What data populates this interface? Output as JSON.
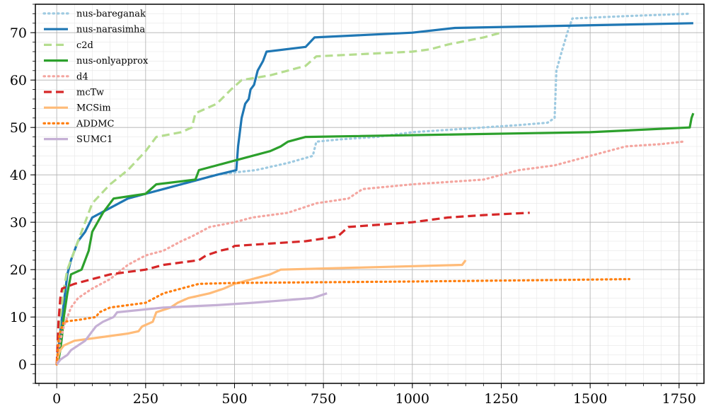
{
  "chart_data": {
    "type": "line",
    "xlim": [
      -60,
      1820
    ],
    "ylim": [
      -4,
      76
    ],
    "x_ticks": [
      0,
      250,
      500,
      750,
      1000,
      1250,
      1500,
      1750
    ],
    "y_ticks": [
      0,
      10,
      20,
      30,
      40,
      50,
      60,
      70
    ],
    "grid": true,
    "legend_position": "top-left",
    "series": [
      {
        "name": "nus-bareganak",
        "color": "#9ecae1",
        "style": "dotted",
        "points": [
          [
            0,
            0
          ],
          [
            5,
            3
          ],
          [
            10,
            7
          ],
          [
            15,
            10
          ],
          [
            20,
            13
          ],
          [
            25,
            16
          ],
          [
            30,
            19
          ],
          [
            40,
            22
          ],
          [
            50,
            24
          ],
          [
            60,
            26
          ],
          [
            80,
            28
          ],
          [
            100,
            31
          ],
          [
            150,
            33
          ],
          [
            200,
            35
          ],
          [
            250,
            36
          ],
          [
            300,
            37
          ],
          [
            350,
            38
          ],
          [
            400,
            39
          ],
          [
            450,
            40
          ],
          [
            500,
            40.5
          ],
          [
            560,
            41
          ],
          [
            650,
            42.5
          ],
          [
            720,
            44
          ],
          [
            730,
            47
          ],
          [
            800,
            47.5
          ],
          [
            900,
            48
          ],
          [
            1000,
            49
          ],
          [
            1100,
            49.5
          ],
          [
            1200,
            50
          ],
          [
            1300,
            50.5
          ],
          [
            1380,
            51
          ],
          [
            1400,
            52
          ],
          [
            1405,
            62
          ],
          [
            1420,
            66
          ],
          [
            1440,
            71
          ],
          [
            1450,
            73
          ],
          [
            1600,
            73.5
          ],
          [
            1780,
            74
          ]
        ]
      },
      {
        "name": "nus-narasimha",
        "color": "#1f77b4",
        "style": "solid",
        "points": [
          [
            0,
            0
          ],
          [
            5,
            3
          ],
          [
            10,
            7
          ],
          [
            15,
            10
          ],
          [
            20,
            13
          ],
          [
            25,
            16
          ],
          [
            30,
            19
          ],
          [
            40,
            22
          ],
          [
            50,
            24
          ],
          [
            60,
            26
          ],
          [
            80,
            28
          ],
          [
            100,
            31
          ],
          [
            150,
            33
          ],
          [
            200,
            35
          ],
          [
            250,
            36
          ],
          [
            300,
            37
          ],
          [
            350,
            38
          ],
          [
            400,
            39
          ],
          [
            450,
            40
          ],
          [
            505,
            41
          ],
          [
            510,
            46
          ],
          [
            520,
            52
          ],
          [
            530,
            55
          ],
          [
            540,
            56
          ],
          [
            545,
            58
          ],
          [
            555,
            59
          ],
          [
            565,
            62
          ],
          [
            580,
            64
          ],
          [
            590,
            66
          ],
          [
            700,
            67
          ],
          [
            725,
            69
          ],
          [
            1000,
            70
          ],
          [
            1120,
            71
          ],
          [
            1790,
            72
          ]
        ]
      },
      {
        "name": "c2d",
        "color": "#b5dd8f",
        "style": "dashed",
        "points": [
          [
            0,
            0
          ],
          [
            5,
            6
          ],
          [
            10,
            10
          ],
          [
            20,
            16
          ],
          [
            30,
            20
          ],
          [
            50,
            24
          ],
          [
            70,
            28
          ],
          [
            100,
            34
          ],
          [
            150,
            38
          ],
          [
            200,
            41
          ],
          [
            250,
            45
          ],
          [
            280,
            48
          ],
          [
            350,
            49
          ],
          [
            380,
            50
          ],
          [
            390,
            53
          ],
          [
            450,
            55
          ],
          [
            490,
            58
          ],
          [
            520,
            60
          ],
          [
            600,
            61
          ],
          [
            700,
            63
          ],
          [
            730,
            65
          ],
          [
            1000,
            66
          ],
          [
            1050,
            66.5
          ],
          [
            1100,
            67.5
          ],
          [
            1200,
            69
          ],
          [
            1250,
            70
          ]
        ]
      },
      {
        "name": "nus-onlyapprox",
        "color": "#2ca02c",
        "style": "solid",
        "points": [
          [
            0,
            0
          ],
          [
            5,
            1
          ],
          [
            10,
            3
          ],
          [
            15,
            6
          ],
          [
            20,
            10
          ],
          [
            30,
            15
          ],
          [
            40,
            19
          ],
          [
            70,
            20
          ],
          [
            90,
            24
          ],
          [
            100,
            28
          ],
          [
            130,
            32
          ],
          [
            160,
            35
          ],
          [
            250,
            36
          ],
          [
            280,
            38
          ],
          [
            390,
            39
          ],
          [
            400,
            41
          ],
          [
            500,
            43
          ],
          [
            600,
            45
          ],
          [
            630,
            46
          ],
          [
            650,
            47
          ],
          [
            700,
            48
          ],
          [
            1500,
            49
          ],
          [
            1780,
            50
          ],
          [
            1785,
            52
          ],
          [
            1790,
            53
          ]
        ]
      },
      {
        "name": "d4",
        "color": "#f4a6a0",
        "style": "dotted",
        "points": [
          [
            0,
            0
          ],
          [
            10,
            5
          ],
          [
            20,
            8
          ],
          [
            40,
            12
          ],
          [
            60,
            14
          ],
          [
            100,
            16
          ],
          [
            150,
            18
          ],
          [
            200,
            21
          ],
          [
            250,
            23
          ],
          [
            300,
            24
          ],
          [
            350,
            26
          ],
          [
            380,
            27
          ],
          [
            430,
            29
          ],
          [
            500,
            30
          ],
          [
            550,
            31
          ],
          [
            650,
            32
          ],
          [
            730,
            34
          ],
          [
            820,
            35
          ],
          [
            860,
            37
          ],
          [
            1000,
            38
          ],
          [
            1100,
            38.5
          ],
          [
            1200,
            39
          ],
          [
            1250,
            40
          ],
          [
            1300,
            41
          ],
          [
            1400,
            42
          ],
          [
            1500,
            44
          ],
          [
            1550,
            45
          ],
          [
            1600,
            46
          ],
          [
            1700,
            46.5
          ],
          [
            1760,
            47
          ]
        ]
      },
      {
        "name": "mcTw",
        "color": "#d62728",
        "style": "dashed",
        "points": [
          [
            0,
            0
          ],
          [
            5,
            9
          ],
          [
            10,
            14
          ],
          [
            15,
            16
          ],
          [
            50,
            17
          ],
          [
            100,
            18
          ],
          [
            150,
            19
          ],
          [
            200,
            19.5
          ],
          [
            250,
            20
          ],
          [
            300,
            21
          ],
          [
            350,
            21.5
          ],
          [
            400,
            22
          ],
          [
            420,
            23
          ],
          [
            460,
            24
          ],
          [
            490,
            24.5
          ],
          [
            500,
            25
          ],
          [
            700,
            26
          ],
          [
            790,
            27
          ],
          [
            820,
            29
          ],
          [
            1000,
            30
          ],
          [
            1100,
            31
          ],
          [
            1200,
            31.5
          ],
          [
            1330,
            32
          ]
        ]
      },
      {
        "name": "MCSim",
        "color": "#ffbb78",
        "style": "solid",
        "points": [
          [
            0,
            0
          ],
          [
            5,
            2
          ],
          [
            10,
            3
          ],
          [
            20,
            4
          ],
          [
            50,
            5
          ],
          [
            100,
            5.5
          ],
          [
            150,
            6
          ],
          [
            200,
            6.5
          ],
          [
            230,
            7
          ],
          [
            240,
            8
          ],
          [
            270,
            9
          ],
          [
            280,
            11
          ],
          [
            320,
            12
          ],
          [
            340,
            13
          ],
          [
            370,
            14
          ],
          [
            430,
            15
          ],
          [
            470,
            16
          ],
          [
            500,
            17
          ],
          [
            550,
            18
          ],
          [
            600,
            19
          ],
          [
            630,
            20
          ],
          [
            1140,
            21
          ],
          [
            1150,
            22
          ]
        ]
      },
      {
        "name": "ADDMC",
        "color": "#ff7f0e",
        "style": "dotted",
        "points": [
          [
            0,
            0
          ],
          [
            5,
            5
          ],
          [
            10,
            7
          ],
          [
            20,
            9
          ],
          [
            70,
            9.5
          ],
          [
            110,
            10
          ],
          [
            120,
            11
          ],
          [
            150,
            12
          ],
          [
            200,
            12.5
          ],
          [
            250,
            13
          ],
          [
            300,
            15
          ],
          [
            350,
            16
          ],
          [
            400,
            17
          ],
          [
            500,
            17.2
          ],
          [
            1000,
            17.5
          ],
          [
            1400,
            17.8
          ],
          [
            1610,
            18
          ]
        ]
      },
      {
        "name": "SUMC1",
        "color": "#c5b0d5",
        "style": "solid",
        "points": [
          [
            0,
            0
          ],
          [
            10,
            1
          ],
          [
            20,
            1.5
          ],
          [
            30,
            2
          ],
          [
            40,
            3
          ],
          [
            60,
            4
          ],
          [
            80,
            5
          ],
          [
            100,
            7
          ],
          [
            110,
            8
          ],
          [
            130,
            9
          ],
          [
            160,
            10
          ],
          [
            170,
            11
          ],
          [
            300,
            12
          ],
          [
            450,
            12.5
          ],
          [
            550,
            13
          ],
          [
            720,
            14
          ],
          [
            760,
            15
          ]
        ]
      }
    ]
  }
}
